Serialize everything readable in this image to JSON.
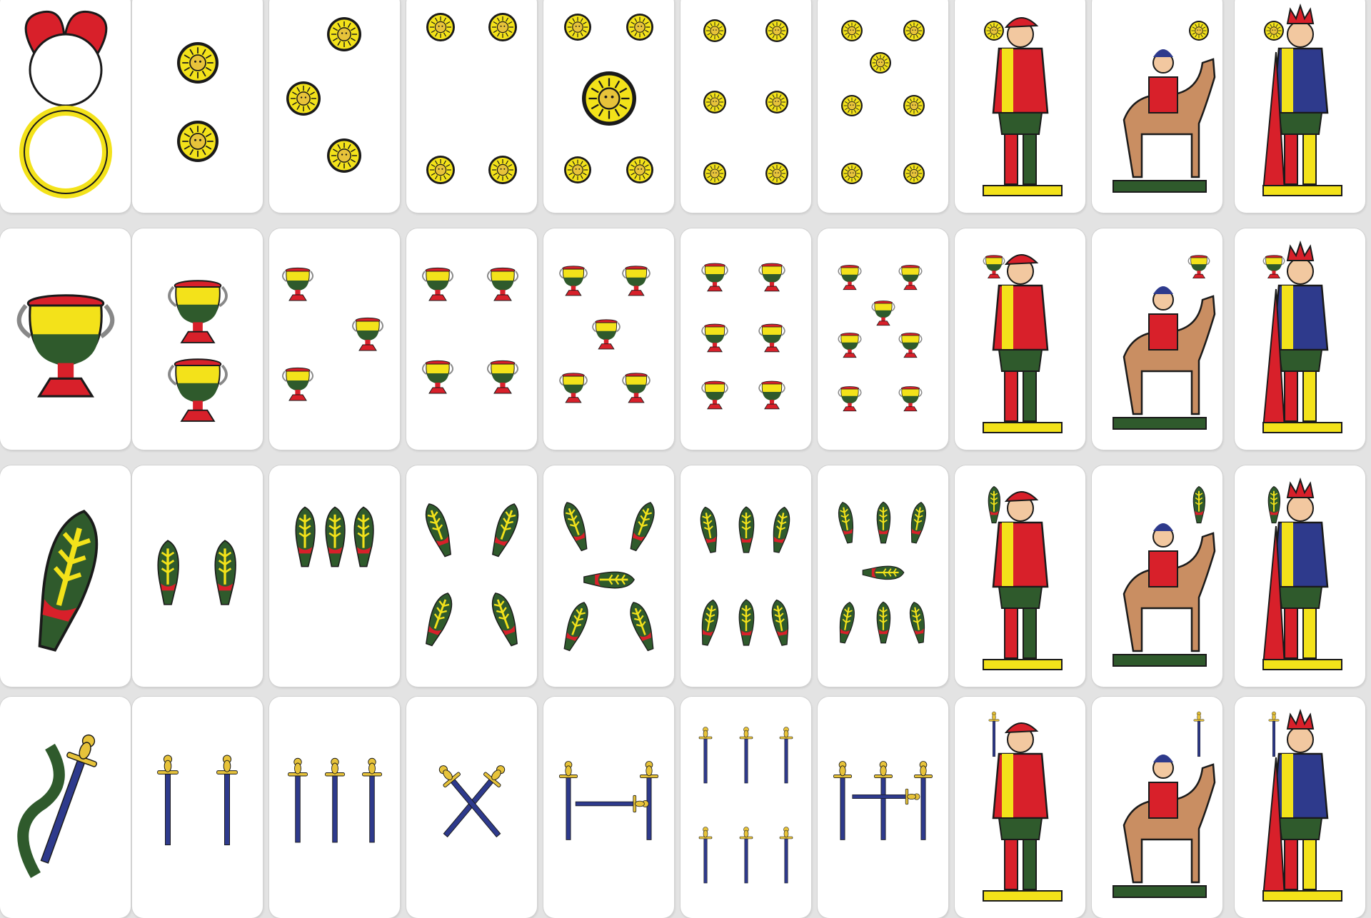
{
  "deck": {
    "suits": [
      {
        "name": "coins-suit",
        "pips": "coins"
      },
      {
        "name": "cups-suit",
        "pips": "cups"
      },
      {
        "name": "clubs-suit",
        "pips": "clubs"
      },
      {
        "name": "swords-suit",
        "pips": "swords"
      }
    ],
    "ranks": [
      "ace",
      "two",
      "three",
      "four",
      "five",
      "six",
      "seven",
      "jack",
      "knight",
      "king"
    ]
  },
  "colors": {
    "background": "#e3e3e3",
    "card": "#ffffff",
    "red": "#d8202a",
    "yellow": "#f3e21a",
    "green": "#2f5a2c",
    "blue": "#2e3a8c",
    "gold": "#e7c33a",
    "skin": "#f2c8a0",
    "horse": "#c98e62",
    "outline": "#1a1a1a"
  }
}
